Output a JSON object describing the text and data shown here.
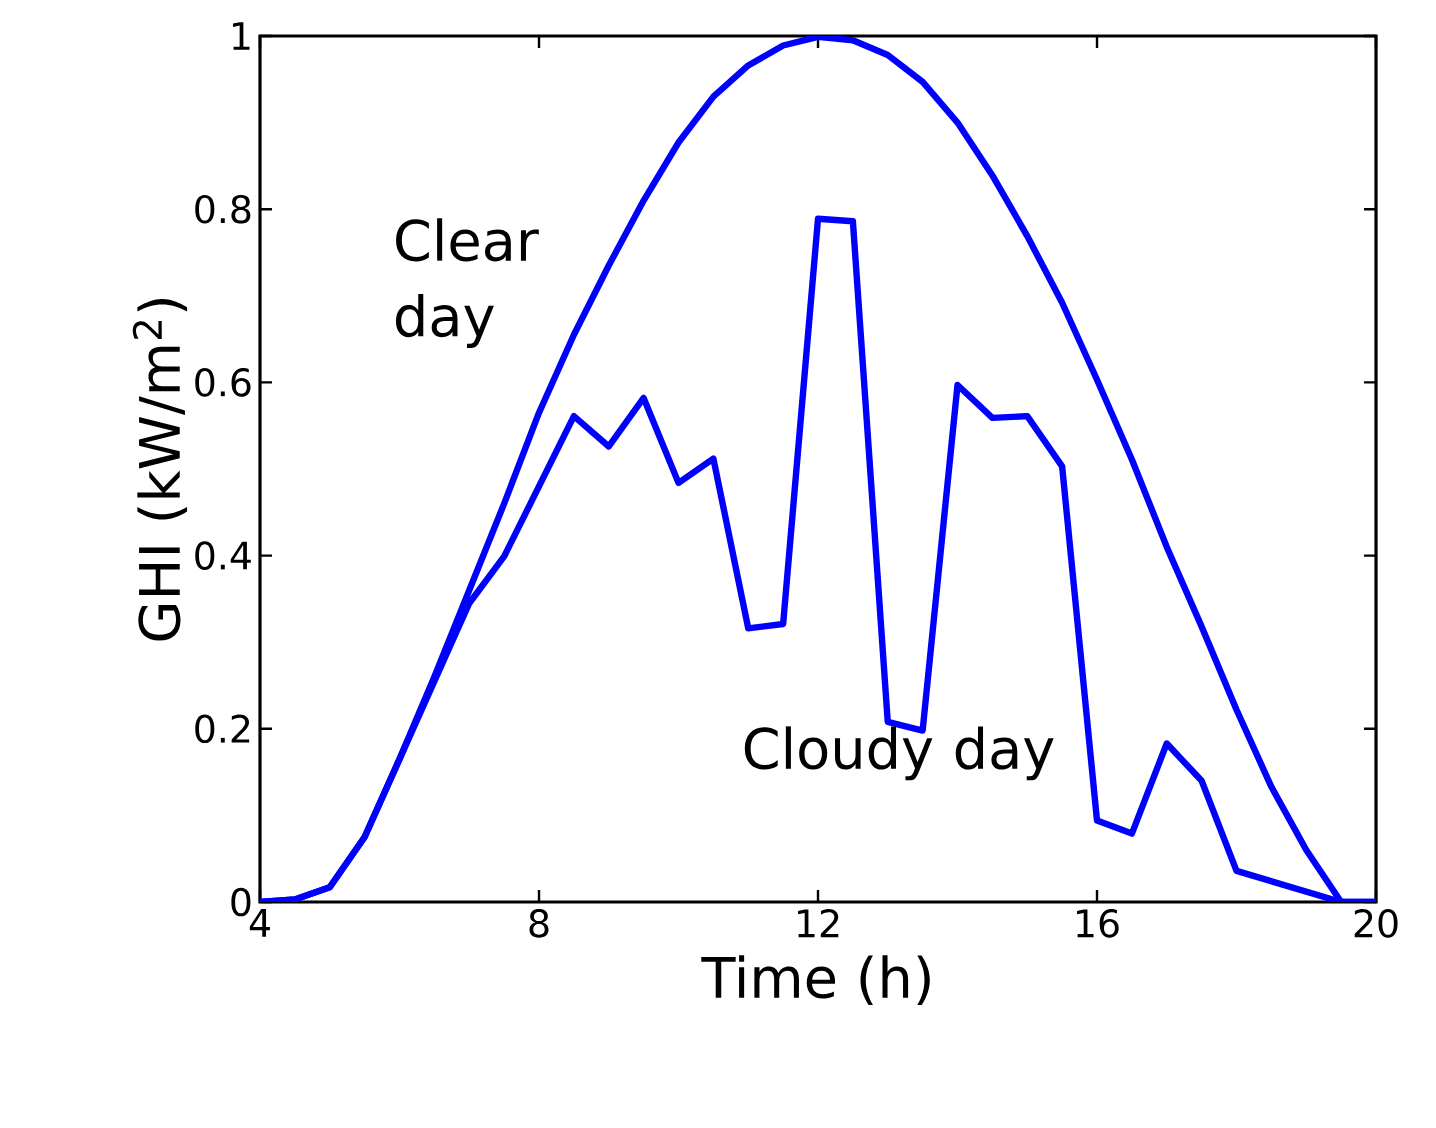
{
  "chart_data": {
    "type": "line",
    "xlabel": "Time (h)",
    "ylabel": "GHI (kW/m$^{2}$)",
    "xlim": [
      4,
      20
    ],
    "ylim": [
      0,
      1
    ],
    "xticks": [
      4,
      8,
      12,
      16,
      20
    ],
    "yticks": [
      0,
      0.2,
      0.4,
      0.6,
      0.8,
      1
    ],
    "grid": false,
    "legend": false,
    "marker": "none",
    "line_style": "solid",
    "series": [
      {
        "name": "Clear day",
        "color": "#0000ff",
        "x": [
          4,
          4.5,
          5,
          5.5,
          6,
          6.5,
          7,
          7.5,
          8,
          8.5,
          9,
          9.5,
          10,
          10.5,
          11,
          11.5,
          12,
          12.5,
          13,
          13.5,
          14,
          14.5,
          15,
          15.5,
          16,
          16.5,
          17,
          17.5,
          18,
          18.5,
          19,
          19.5,
          20
        ],
        "values": [
          0,
          0.003,
          0.017,
          0.075,
          0.165,
          0.26,
          0.36,
          0.46,
          0.565,
          0.655,
          0.735,
          0.81,
          0.877,
          0.93,
          0.966,
          0.989,
          0.999,
          0.995,
          0.978,
          0.947,
          0.9,
          0.839,
          0.769,
          0.692,
          0.603,
          0.511,
          0.41,
          0.318,
          0.222,
          0.133,
          0.06,
          0,
          0
        ]
      },
      {
        "name": "Cloudy day",
        "color": "#0000ff",
        "x": [
          4,
          4.5,
          5,
          5.5,
          6,
          6.5,
          7,
          7.5,
          8.5,
          9,
          9.5,
          10,
          10.5,
          11,
          11.5,
          12,
          12.5,
          13,
          13.5,
          14,
          14.5,
          15,
          15.5,
          16,
          16.5,
          17,
          17.5,
          18,
          19.5,
          20
        ],
        "values": [
          0,
          0.003,
          0.017,
          0.075,
          0.165,
          0.255,
          0.345,
          0.399,
          0.561,
          0.526,
          0.582,
          0.484,
          0.512,
          0.316,
          0.321,
          0.789,
          0.786,
          0.208,
          0.198,
          0.597,
          0.559,
          0.561,
          0.503,
          0.094,
          0.079,
          0.183,
          0.14,
          0.036,
          0,
          0
        ]
      }
    ]
  }
}
